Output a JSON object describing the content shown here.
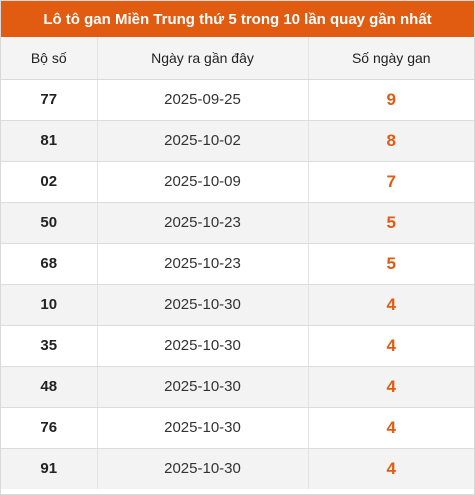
{
  "title": "Lô tô gan Miền Trung thứ 5 trong 10 lần quay gần nhất",
  "headers": {
    "number": "Bộ số",
    "last_date": "Ngày ra gần đây",
    "days_absent": "Số ngày gan"
  },
  "rows": [
    {
      "number": "77",
      "last_date": "2025-09-25",
      "days_absent": "9"
    },
    {
      "number": "81",
      "last_date": "2025-10-02",
      "days_absent": "8"
    },
    {
      "number": "02",
      "last_date": "2025-10-09",
      "days_absent": "7"
    },
    {
      "number": "50",
      "last_date": "2025-10-23",
      "days_absent": "5"
    },
    {
      "number": "68",
      "last_date": "2025-10-23",
      "days_absent": "5"
    },
    {
      "number": "10",
      "last_date": "2025-10-30",
      "days_absent": "4"
    },
    {
      "number": "35",
      "last_date": "2025-10-30",
      "days_absent": "4"
    },
    {
      "number": "48",
      "last_date": "2025-10-30",
      "days_absent": "4"
    },
    {
      "number": "76",
      "last_date": "2025-10-30",
      "days_absent": "4"
    },
    {
      "number": "91",
      "last_date": "2025-10-30",
      "days_absent": "4"
    }
  ],
  "colors": {
    "accent": "#e15b10",
    "header_bg": "#f4f4f4",
    "row_alt_bg": "#f3f3f3"
  }
}
